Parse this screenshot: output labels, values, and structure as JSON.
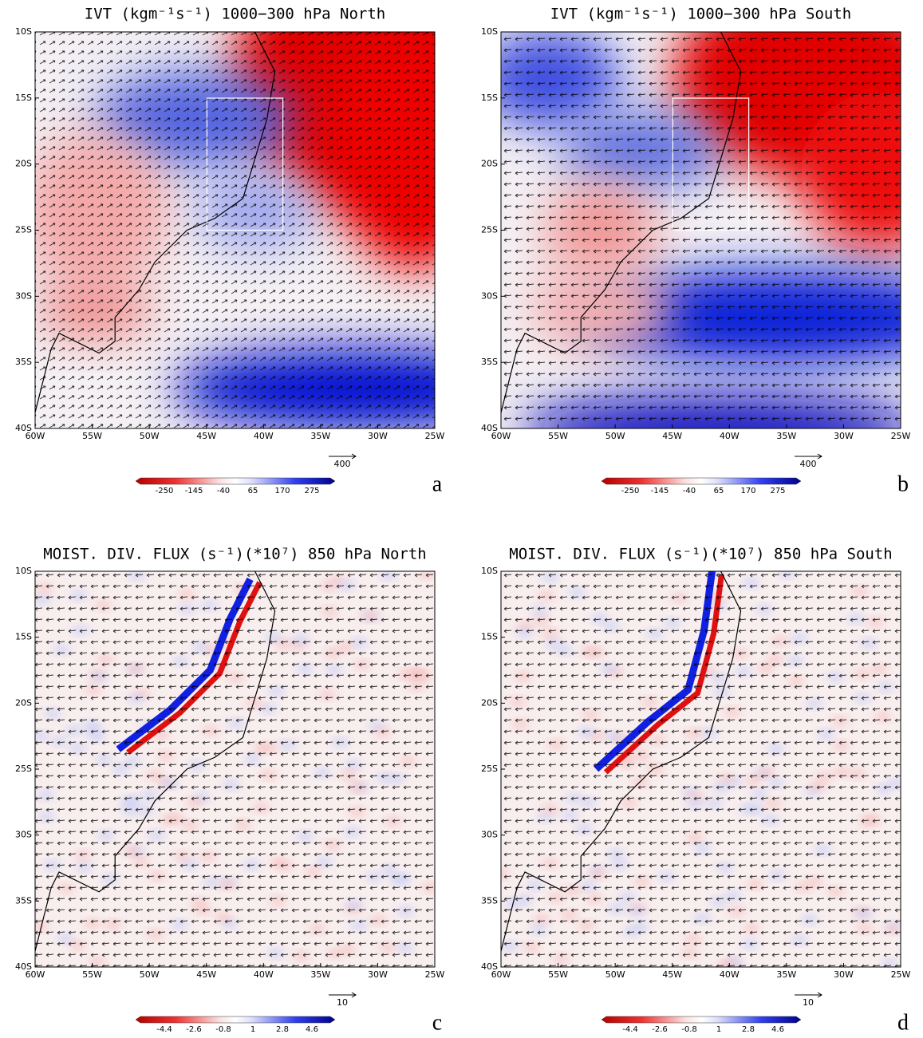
{
  "panels": [
    {
      "title": "IVT (kgm⁻¹s⁻¹) 1000−300 hPa North",
      "letter": "a",
      "lat_labels": [
        "10S",
        "15S",
        "20S",
        "25S",
        "30S",
        "35S",
        "40S"
      ],
      "lon_labels": [
        "60W",
        "55W",
        "50W",
        "45W",
        "40W",
        "35W",
        "30W",
        "25W"
      ],
      "reference_vector": "400",
      "colorbar": [
        "-250",
        "-145",
        "-40",
        "65",
        "170",
        "275"
      ]
    },
    {
      "title": "IVT (kgm⁻¹s⁻¹) 1000−300 hPa South",
      "letter": "b",
      "lat_labels": [
        "10S",
        "15S",
        "20S",
        "25S",
        "30S",
        "35S",
        "40S"
      ],
      "lon_labels": [
        "60W",
        "55W",
        "50W",
        "45W",
        "40W",
        "35W",
        "30W",
        "25W"
      ],
      "reference_vector": "400",
      "colorbar": [
        "-250",
        "-145",
        "-40",
        "65",
        "170",
        "275"
      ]
    },
    {
      "title": "MOIST. DIV. FLUX (s⁻¹)(*10⁷) 850 hPa North",
      "letter": "c",
      "lat_labels": [
        "10S",
        "15S",
        "20S",
        "25S",
        "30S",
        "35S",
        "40S"
      ],
      "lon_labels": [
        "60W",
        "55W",
        "50W",
        "45W",
        "40W",
        "35W",
        "30W",
        "25W"
      ],
      "reference_vector": "10",
      "colorbar": [
        "-4.4",
        "-2.6",
        "-0.8",
        "1",
        "2.8",
        "4.6"
      ]
    },
    {
      "title": "MOIST. DIV. FLUX (s⁻¹)(*10⁷) 850 hPa South",
      "letter": "d",
      "lat_labels": [
        "10S",
        "15S",
        "20S",
        "25S",
        "30S",
        "35S",
        "40S"
      ],
      "lon_labels": [
        "60W",
        "55W",
        "50W",
        "45W",
        "40W",
        "35W",
        "30W",
        "25W"
      ],
      "reference_vector": "10",
      "colorbar": [
        "-4.4",
        "-2.6",
        "-0.8",
        "1",
        "2.8",
        "4.6"
      ]
    }
  ]
}
